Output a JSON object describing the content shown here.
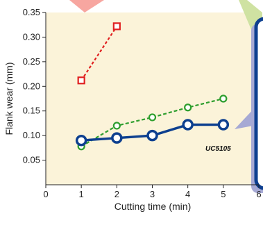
{
  "chart_data": {
    "type": "line",
    "title": "",
    "xlabel": "Cutting time (min)",
    "ylabel": "Flank wear (mm)",
    "xlim": [
      0,
      6
    ],
    "ylim": [
      0,
      0.35
    ],
    "x_ticks": [
      "0",
      "1",
      "2",
      "3",
      "4",
      "5",
      "6"
    ],
    "y_ticks": [
      "0.05",
      "0.10",
      "0.15",
      "0.20",
      "0.25",
      "0.30",
      "0.35"
    ],
    "grid": false,
    "series": [
      {
        "name": "UC5105",
        "color": "#0d3f8f",
        "marker": "circle",
        "line": "solid",
        "x": [
          1,
          2,
          3,
          4,
          5
        ],
        "y": [
          0.09,
          0.095,
          0.1,
          0.122,
          0.122
        ]
      },
      {
        "name": "",
        "color": "#2e9e2e",
        "marker": "circle",
        "line": "dashed",
        "x": [
          1,
          2,
          3,
          4,
          5
        ],
        "y": [
          0.078,
          0.12,
          0.137,
          0.157,
          0.175
        ]
      },
      {
        "name": "",
        "color": "#e02020",
        "marker": "square",
        "line": "dashed",
        "x": [
          1,
          2
        ],
        "y": [
          0.212,
          0.322
        ]
      }
    ],
    "colors": {
      "plot_background": "#fbf3d9",
      "callout_pink": "#f7a6a0",
      "callout_green": "#cfe2a2",
      "callout_lavender": "#a6a9d4",
      "callout_box_border": "#0d3f8f"
    }
  }
}
